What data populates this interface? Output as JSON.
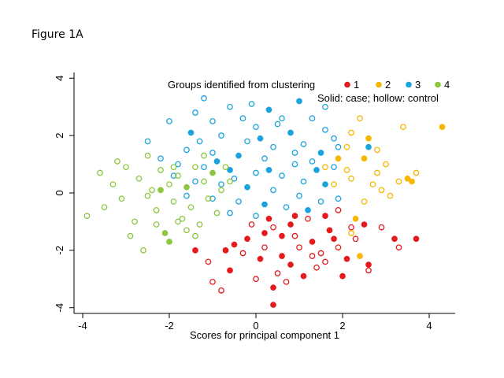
{
  "figure_label": "Figure 1A",
  "chart_data": {
    "type": "scatter",
    "title": "",
    "xlabel": "Scores for principal component 1",
    "ylabel": "",
    "xlim": [
      -4.2,
      4.6
    ],
    "ylim": [
      -4.2,
      4.2
    ],
    "x_ticks": [
      -4,
      -2,
      0,
      2,
      4
    ],
    "y_ticks": [
      -4,
      -2,
      0,
      2,
      4
    ],
    "grid": false,
    "legend": {
      "title": "Groups identified from clustering",
      "note": "Solid: case; hollow: control",
      "placement": "top-right"
    },
    "series": [
      {
        "name": "1",
        "color": "#e41a1c",
        "points": [
          [
            0.3,
            -0.9,
            true
          ],
          [
            0.4,
            -1.2,
            false
          ],
          [
            -0.2,
            -1.6,
            true
          ],
          [
            0.2,
            -1.9,
            false
          ],
          [
            0.6,
            -2.2,
            true
          ],
          [
            0.9,
            -1.5,
            false
          ],
          [
            1.3,
            -1.7,
            true
          ],
          [
            1.5,
            -2.1,
            false
          ],
          [
            1.7,
            -1.3,
            true
          ],
          [
            1.9,
            -1.9,
            false
          ],
          [
            2.1,
            -2.3,
            true
          ],
          [
            2.3,
            -1.6,
            false
          ],
          [
            2.5,
            -1.1,
            true
          ],
          [
            2.6,
            -2.7,
            false
          ],
          [
            2.0,
            -2.9,
            true
          ],
          [
            1.4,
            -2.6,
            false
          ],
          [
            0.8,
            -2.5,
            true
          ],
          [
            0.5,
            -2.8,
            false
          ],
          [
            0.1,
            -2.3,
            true
          ],
          [
            -0.3,
            -2.1,
            false
          ],
          [
            -0.7,
            -2.0,
            true
          ],
          [
            -1.1,
            -2.4,
            false
          ],
          [
            -1.4,
            -2.0,
            true
          ],
          [
            -1.0,
            -3.1,
            false
          ],
          [
            -0.6,
            -2.7,
            true
          ],
          [
            0.0,
            -3.0,
            false
          ],
          [
            0.4,
            -3.3,
            true
          ],
          [
            0.7,
            -3.1,
            false
          ],
          [
            1.1,
            -2.9,
            true
          ],
          [
            1.6,
            -2.4,
            false
          ],
          [
            1.8,
            -1.6,
            true
          ],
          [
            2.2,
            -1.2,
            false
          ],
          [
            0.9,
            -0.8,
            true
          ],
          [
            1.2,
            -0.9,
            false
          ],
          [
            1.6,
            -0.8,
            true
          ],
          [
            1.9,
            -0.6,
            false
          ],
          [
            0.2,
            -1.4,
            true
          ],
          [
            -0.1,
            -1.1,
            false
          ],
          [
            0.6,
            -1.5,
            true
          ],
          [
            1.0,
            -1.9,
            false
          ],
          [
            3.2,
            -1.6,
            true
          ],
          [
            3.7,
            -1.6,
            true
          ],
          [
            3.3,
            -1.9,
            false
          ],
          [
            2.6,
            -2.5,
            true
          ],
          [
            0.4,
            -3.9,
            true
          ],
          [
            -0.8,
            -3.4,
            false
          ],
          [
            -0.5,
            -1.8,
            true
          ],
          [
            1.3,
            -2.2,
            false
          ],
          [
            0.8,
            -1.1,
            true
          ],
          [
            2.9,
            -1.2,
            false
          ]
        ]
      },
      {
        "name": "2",
        "color": "#f5b700",
        "points": [
          [
            4.3,
            2.3,
            true
          ],
          [
            3.4,
            2.3,
            false
          ],
          [
            2.4,
            2.6,
            false
          ],
          [
            2.2,
            2.1,
            false
          ],
          [
            2.6,
            1.9,
            true
          ],
          [
            2.8,
            1.5,
            false
          ],
          [
            2.5,
            1.2,
            true
          ],
          [
            3.0,
            1.0,
            false
          ],
          [
            2.1,
            1.6,
            false
          ],
          [
            1.9,
            1.2,
            true
          ],
          [
            3.5,
            0.5,
            true
          ],
          [
            3.7,
            0.7,
            false
          ],
          [
            3.3,
            0.4,
            false
          ],
          [
            2.8,
            0.7,
            false
          ],
          [
            2.2,
            0.5,
            false
          ],
          [
            1.8,
            0.3,
            false
          ],
          [
            2.9,
            0.1,
            false
          ],
          [
            2.5,
            -0.3,
            false
          ],
          [
            2.3,
            -0.9,
            true
          ],
          [
            2.2,
            -1.4,
            false
          ],
          [
            2.4,
            -2.2,
            true
          ],
          [
            2.1,
            0.8,
            false
          ],
          [
            1.6,
            0.9,
            false
          ],
          [
            3.1,
            -0.1,
            false
          ],
          [
            2.7,
            0.3,
            false
          ],
          [
            3.6,
            0.4,
            true
          ]
        ]
      },
      {
        "name": "3",
        "color": "#1aa3dc",
        "points": [
          [
            1.0,
            3.2,
            true
          ],
          [
            0.3,
            2.9,
            true
          ],
          [
            -1.2,
            3.3,
            false
          ],
          [
            -0.6,
            3.0,
            false
          ],
          [
            0.6,
            2.6,
            false
          ],
          [
            1.3,
            2.6,
            false
          ],
          [
            -1.0,
            2.5,
            false
          ],
          [
            -2.0,
            2.5,
            false
          ],
          [
            -1.5,
            2.1,
            true
          ],
          [
            -0.8,
            2.0,
            false
          ],
          [
            0.0,
            2.3,
            false
          ],
          [
            0.8,
            2.1,
            true
          ],
          [
            1.6,
            2.2,
            false
          ],
          [
            -0.2,
            1.8,
            false
          ],
          [
            0.4,
            1.6,
            false
          ],
          [
            1.1,
            1.7,
            false
          ],
          [
            1.5,
            1.4,
            true
          ],
          [
            1.9,
            1.6,
            false
          ],
          [
            -1.6,
            1.5,
            false
          ],
          [
            -1.0,
            1.4,
            false
          ],
          [
            -0.4,
            1.3,
            true
          ],
          [
            0.2,
            1.2,
            false
          ],
          [
            0.9,
            1.0,
            false
          ],
          [
            1.4,
            0.8,
            true
          ],
          [
            1.8,
            0.9,
            false
          ],
          [
            -1.8,
            1.0,
            false
          ],
          [
            -1.2,
            0.9,
            false
          ],
          [
            -0.6,
            0.8,
            true
          ],
          [
            0.0,
            0.7,
            false
          ],
          [
            0.6,
            0.6,
            false
          ],
          [
            1.1,
            0.4,
            false
          ],
          [
            1.6,
            0.3,
            true
          ],
          [
            -1.4,
            0.4,
            false
          ],
          [
            -0.8,
            0.3,
            false
          ],
          [
            -0.2,
            0.2,
            true
          ],
          [
            0.4,
            0.1,
            false
          ],
          [
            1.0,
            -0.1,
            false
          ],
          [
            1.5,
            -0.3,
            false
          ],
          [
            -1.0,
            -0.2,
            false
          ],
          [
            -0.4,
            -0.3,
            false
          ],
          [
            0.2,
            -0.4,
            true
          ],
          [
            0.7,
            -0.5,
            false
          ],
          [
            -0.6,
            -0.7,
            false
          ],
          [
            0.0,
            -0.8,
            false
          ],
          [
            1.2,
            -0.6,
            true
          ],
          [
            -1.3,
            1.8,
            false
          ],
          [
            -0.3,
            2.6,
            false
          ],
          [
            0.5,
            2.4,
            false
          ],
          [
            1.8,
            1.9,
            false
          ],
          [
            -2.2,
            1.2,
            false
          ],
          [
            -1.9,
            0.6,
            false
          ],
          [
            -1.6,
            -0.1,
            false
          ],
          [
            0.1,
            1.9,
            true
          ],
          [
            0.9,
            1.4,
            false
          ],
          [
            1.3,
            1.1,
            false
          ],
          [
            -0.9,
            1.1,
            true
          ],
          [
            1.9,
            -0.2,
            false
          ],
          [
            2.6,
            1.6,
            true
          ],
          [
            -0.5,
            0.5,
            false
          ],
          [
            0.3,
            0.8,
            true
          ],
          [
            -2.5,
            1.8,
            false
          ],
          [
            -0.1,
            3.1,
            false
          ],
          [
            1.6,
            3.0,
            false
          ],
          [
            -1.4,
            2.8,
            false
          ]
        ]
      },
      {
        "name": "4",
        "color": "#8dc63f",
        "points": [
          [
            -3.9,
            -0.8,
            false
          ],
          [
            -3.5,
            -0.5,
            false
          ],
          [
            -3.6,
            0.7,
            false
          ],
          [
            -3.3,
            0.3,
            false
          ],
          [
            -3.1,
            -0.2,
            false
          ],
          [
            -3.0,
            0.9,
            false
          ],
          [
            -2.8,
            -1.0,
            false
          ],
          [
            -2.7,
            0.5,
            false
          ],
          [
            -2.5,
            1.3,
            false
          ],
          [
            -2.4,
            0.1,
            false
          ],
          [
            -2.3,
            -0.6,
            false
          ],
          [
            -2.2,
            0.8,
            false
          ],
          [
            -2.1,
            -1.4,
            true
          ],
          [
            -2.0,
            0.3,
            false
          ],
          [
            -1.9,
            -0.3,
            false
          ],
          [
            -1.8,
            0.6,
            false
          ],
          [
            -1.7,
            -0.9,
            false
          ],
          [
            -1.6,
            0.2,
            true
          ],
          [
            -1.5,
            -0.5,
            false
          ],
          [
            -1.4,
            0.9,
            false
          ],
          [
            -1.3,
            -1.1,
            false
          ],
          [
            -1.2,
            0.4,
            false
          ],
          [
            -1.1,
            -0.2,
            false
          ],
          [
            -1.0,
            0.7,
            true
          ],
          [
            -0.9,
            -0.7,
            false
          ],
          [
            -0.8,
            0.1,
            false
          ],
          [
            -0.7,
            0.9,
            false
          ],
          [
            -2.9,
            -1.5,
            false
          ],
          [
            -2.6,
            -2.0,
            false
          ],
          [
            -2.0,
            -1.7,
            true
          ],
          [
            -1.6,
            -1.3,
            false
          ],
          [
            -2.3,
            -1.1,
            false
          ],
          [
            -3.2,
            1.1,
            false
          ],
          [
            -2.5,
            -0.1,
            false
          ],
          [
            -1.9,
            0.9,
            false
          ],
          [
            -1.4,
            -1.5,
            false
          ],
          [
            -2.2,
            0.1,
            true
          ],
          [
            -1.8,
            -1.0,
            false
          ],
          [
            -0.6,
            0.4,
            false
          ],
          [
            -1.2,
            1.3,
            false
          ]
        ]
      }
    ]
  }
}
